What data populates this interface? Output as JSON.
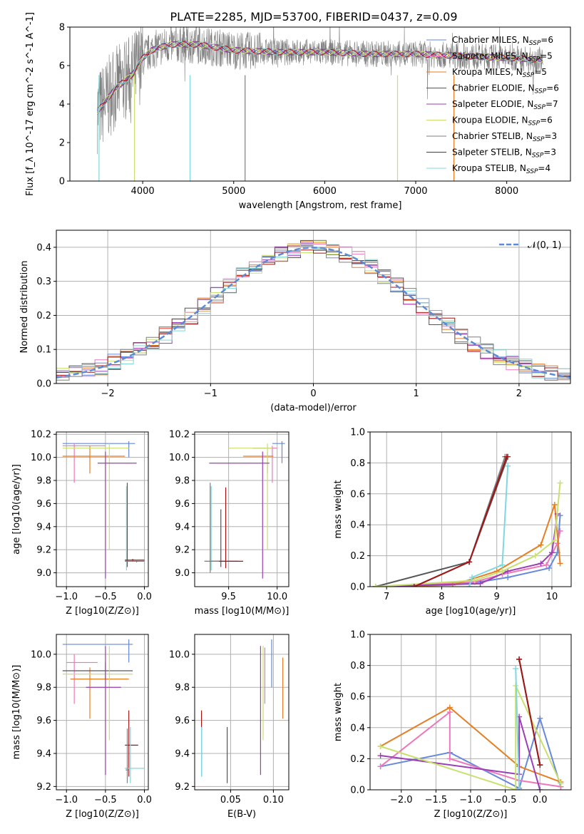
{
  "figure": {
    "title": "PLATE=2285, MJD=53700, FIBERID=0437, z=0.09"
  },
  "colors": {
    "Chabrier MILES": "#6688dd",
    "Salpeter MILES": "#ee77bb",
    "Kroupa MILES": "#e67e22",
    "Chabrier ELODIE": "#555555",
    "Salpeter ELODIE": "#9b3fb5",
    "Kroupa ELODIE": "#c8e06e",
    "Chabrier STELIB": "#7f7f7f",
    "Salpeter STELIB": "#a31515",
    "Kroupa STELIB": "#7fd8dc"
  },
  "chart_data": [
    {
      "id": "spectrum",
      "type": "line",
      "xlabel": "wavelength [Angstrom, rest frame]",
      "ylabel": "Flux [f_λ 10^-17 erg cm^-2 s^-1 A^-1]",
      "xlim": [
        3200,
        8700
      ],
      "ylim": [
        0,
        8
      ],
      "xticks": [
        "4000",
        "5000",
        "6000",
        "7000",
        "8000"
      ],
      "yticks": [
        "0",
        "2",
        "4",
        "6",
        "8"
      ],
      "grid": false,
      "legend_position": "right",
      "legend": [
        {
          "name": "Chabrier MILES",
          "nssp": "6"
        },
        {
          "name": "Salpeter MILES",
          "nssp": "5"
        },
        {
          "name": "Kroupa MILES",
          "nssp": "5"
        },
        {
          "name": "Chabrier ELODIE",
          "nssp": "6"
        },
        {
          "name": "Salpeter ELODIE",
          "nssp": "7"
        },
        {
          "name": "Kroupa ELODIE",
          "nssp": "6"
        },
        {
          "name": "Chabrier STELIB",
          "nssp": "3"
        },
        {
          "name": "Salpeter STELIB",
          "nssp": "3"
        },
        {
          "name": "Kroupa STELIB",
          "nssp": "4"
        }
      ],
      "continuum": [
        [
          3500,
          3.6
        ],
        [
          3700,
          4.8
        ],
        [
          3900,
          5.6
        ],
        [
          4000,
          6.4
        ],
        [
          4100,
          6.8
        ],
        [
          4300,
          7.1
        ],
        [
          4600,
          7.1
        ],
        [
          5000,
          6.8
        ],
        [
          5500,
          6.7
        ],
        [
          6000,
          6.7
        ],
        [
          6500,
          6.6
        ],
        [
          7000,
          6.6
        ],
        [
          7500,
          6.5
        ],
        [
          8000,
          6.4
        ],
        [
          8400,
          6.3
        ]
      ]
    },
    {
      "id": "residuals",
      "type": "line",
      "xlabel": "(data-model)/error",
      "ylabel": "Normed distribution",
      "xlim": [
        -2.5,
        2.5
      ],
      "ylim": [
        0,
        0.45
      ],
      "xticks": [
        "−2",
        "−1",
        "0",
        "1",
        "2"
      ],
      "yticks": [
        "0.0",
        "0.1",
        "0.2",
        "0.3",
        "0.4"
      ],
      "grid": true,
      "legend_position": "upper right",
      "legend_label": "𝒩(0, 1)",
      "normal": {
        "mu": 0,
        "sigma": 1
      }
    },
    {
      "id": "age-vs-Z",
      "type": "errorbar",
      "xlabel": "Z [log10(Z/Z⊙)]",
      "ylabel": "age [log10(age/yr)]",
      "xlim": [
        -1.13,
        0.05
      ],
      "ylim": [
        8.88,
        10.22
      ],
      "xticks": [
        "−1.0",
        "−0.5",
        "0.0"
      ],
      "yticks": [
        "9.0",
        "9.2",
        "9.4",
        "9.6",
        "9.8",
        "10.0",
        "10.2"
      ],
      "points": [
        {
          "model": "Chabrier MILES",
          "x": -0.2,
          "xlo": -1.05,
          "xhi": -0.12,
          "y": 10.12,
          "ylo": 10.0,
          "yhi": 10.14
        },
        {
          "model": "Salpeter MILES",
          "x": -0.9,
          "xlo": -1.05,
          "xhi": -0.5,
          "y": 10.1,
          "ylo": 9.78,
          "yhi": 10.12
        },
        {
          "model": "Kroupa MILES",
          "x": -0.7,
          "xlo": -1.05,
          "xhi": -0.25,
          "y": 10.01,
          "ylo": 9.86,
          "yhi": 10.1
        },
        {
          "model": "Kroupa ELODIE",
          "x": -0.45,
          "xlo": -1.05,
          "xhi": -0.2,
          "y": 10.08,
          "ylo": 9.2,
          "yhi": 10.12
        },
        {
          "model": "Salpeter ELODIE",
          "x": -0.5,
          "xlo": -0.6,
          "xhi": -0.1,
          "y": 9.95,
          "ylo": 8.95,
          "yhi": 10.05
        },
        {
          "model": "Chabrier ELODIE",
          "x": -0.22,
          "xlo": -0.24,
          "xhi": -0.2,
          "y": 9.1,
          "ylo": 9.05,
          "yhi": 9.78
        },
        {
          "model": "Kroupa STELIB",
          "x": -0.23,
          "xlo": -0.25,
          "xhi": -0.21,
          "y": 9.1,
          "ylo": 9.02,
          "yhi": 9.75
        },
        {
          "model": "Salpeter STELIB",
          "x": -0.15,
          "xlo": -0.25,
          "xhi": 0.0,
          "y": 9.11,
          "ylo": 9.1,
          "yhi": 9.12
        },
        {
          "model": "Chabrier STELIB",
          "x": -0.1,
          "xlo": -0.25,
          "xhi": 0.0,
          "y": 9.1,
          "ylo": 9.09,
          "yhi": 9.11
        }
      ]
    },
    {
      "id": "age-vs-mass",
      "type": "errorbar",
      "xlabel": "mass [log10(M/M⊙)]",
      "ylabel": "",
      "xlim": [
        9.15,
        10.12
      ],
      "ylim": [
        8.88,
        10.22
      ],
      "xticks": [
        "9.5",
        "10.0"
      ],
      "yticks": [
        "9.0",
        "9.2",
        "9.4",
        "9.6",
        "9.8",
        "10.0",
        "10.2"
      ],
      "points": [
        {
          "model": "Chabrier MILES",
          "x": 10.05,
          "xlo": 9.95,
          "xhi": 10.08,
          "y": 10.12,
          "ylo": 9.95,
          "yhi": 10.14
        },
        {
          "model": "Salpeter MILES",
          "x": 9.95,
          "xlo": 9.75,
          "xhi": 10.0,
          "y": 10.08,
          "ylo": 9.78,
          "yhi": 10.1
        },
        {
          "model": "Kroupa MILES",
          "x": 9.9,
          "xlo": 9.65,
          "xhi": 9.96,
          "y": 10.01,
          "ylo": 9.86,
          "yhi": 10.05
        },
        {
          "model": "Kroupa ELODIE",
          "x": 9.9,
          "xlo": 9.5,
          "xhi": 9.95,
          "y": 10.08,
          "ylo": 9.2,
          "yhi": 10.12
        },
        {
          "model": "Salpeter ELODIE",
          "x": 9.85,
          "xlo": 9.3,
          "xhi": 9.92,
          "y": 9.95,
          "ylo": 8.95,
          "yhi": 10.05
        },
        {
          "model": "Chabrier ELODIE",
          "x": 9.42,
          "xlo": 9.3,
          "xhi": 9.6,
          "y": 9.1,
          "ylo": 9.05,
          "yhi": 9.55
        },
        {
          "model": "Kroupa STELIB",
          "x": 9.32,
          "xlo": 9.25,
          "xhi": 9.4,
          "y": 9.1,
          "ylo": 9.02,
          "yhi": 9.75
        },
        {
          "model": "Salpeter STELIB",
          "x": 9.47,
          "xlo": 9.32,
          "xhi": 9.65,
          "y": 9.1,
          "ylo": 9.04,
          "yhi": 9.74
        },
        {
          "model": "Chabrier STELIB",
          "x": 9.31,
          "xlo": 9.25,
          "xhi": 9.4,
          "y": 9.1,
          "ylo": 9.0,
          "yhi": 9.78
        }
      ]
    },
    {
      "id": "weight-vs-age",
      "type": "line",
      "xlabel": "age [log10(age/yr)]",
      "ylabel": "mass weight",
      "xlim": [
        6.7,
        10.35
      ],
      "ylim": [
        0,
        1
      ],
      "xticks": [
        "7",
        "8",
        "9",
        "10"
      ],
      "yticks": [
        "0.0",
        "0.2",
        "0.4",
        "0.6",
        "0.8",
        "1.0"
      ],
      "grid": true,
      "series": [
        {
          "model": "Chabrier MILES",
          "x": [
            6.8,
            8.5,
            9.2,
            9.95,
            10.1,
            10.15
          ],
          "y": [
            0.0,
            0.02,
            0.06,
            0.12,
            0.22,
            0.46
          ]
        },
        {
          "model": "Salpeter MILES",
          "x": [
            6.8,
            8.6,
            9.1,
            9.9,
            10.1,
            10.15
          ],
          "y": [
            0.0,
            0.03,
            0.08,
            0.14,
            0.28,
            0.36
          ]
        },
        {
          "model": "Kroupa MILES",
          "x": [
            6.8,
            8.2,
            9.0,
            9.8,
            10.05,
            10.15
          ],
          "y": [
            0.0,
            0.01,
            0.1,
            0.27,
            0.53,
            0.15
          ]
        },
        {
          "model": "Chabrier ELODIE",
          "x": [
            6.8,
            8.5,
            9.2
          ],
          "y": [
            0.0,
            0.16,
            0.84
          ]
        },
        {
          "model": "Salpeter ELODIE",
          "x": [
            6.8,
            8.7,
            9.2,
            9.8,
            10.0,
            10.1
          ],
          "y": [
            0.0,
            0.02,
            0.1,
            0.15,
            0.22,
            0.47
          ]
        },
        {
          "model": "Kroupa ELODIE",
          "x": [
            6.8,
            8.6,
            9.1,
            9.7,
            10.05,
            10.15
          ],
          "y": [
            0.0,
            0.04,
            0.1,
            0.2,
            0.3,
            0.67
          ]
        },
        {
          "model": "Chabrier STELIB",
          "x": [
            7.5,
            8.5,
            9.15
          ],
          "y": [
            0.0,
            0.16,
            0.84
          ]
        },
        {
          "model": "Salpeter STELIB",
          "x": [
            7.5,
            8.5,
            9.18
          ],
          "y": [
            0.0,
            0.16,
            0.84
          ]
        },
        {
          "model": "Kroupa STELIB",
          "x": [
            8.5,
            8.55,
            9.1,
            9.2
          ],
          "y": [
            0.0,
            0.06,
            0.14,
            0.78
          ]
        }
      ]
    },
    {
      "id": "mass-vs-Z",
      "type": "errorbar",
      "xlabel": "Z [log10(Z/Z⊙)]",
      "ylabel": "mass [log10(M/M⊙)]",
      "xlim": [
        -1.13,
        0.05
      ],
      "ylim": [
        9.18,
        10.12
      ],
      "xticks": [
        "−1.0",
        "−0.5",
        "0.0"
      ],
      "yticks": [
        "9.2",
        "9.4",
        "9.6",
        "9.8",
        "10.0"
      ],
      "points": [
        {
          "model": "Chabrier MILES",
          "x": -0.2,
          "xlo": -1.05,
          "xhi": -0.15,
          "y": 10.06,
          "ylo": 9.95,
          "yhi": 10.09
        },
        {
          "model": "Salpeter MILES",
          "x": -0.9,
          "xlo": -1.0,
          "xhi": -0.6,
          "y": 9.95,
          "ylo": 9.7,
          "yhi": 10.0
        },
        {
          "model": "Kroupa MILES",
          "x": -0.7,
          "xlo": -0.95,
          "xhi": -0.2,
          "y": 9.85,
          "ylo": 9.61,
          "yhi": 9.92
        },
        {
          "model": "Chabrier ELODIE",
          "x": -0.5,
          "xlo": -1.05,
          "xhi": -0.15,
          "y": 9.9,
          "ylo": 9.85,
          "yhi": 9.95
        },
        {
          "model": "Kroupa ELODIE",
          "x": -0.45,
          "xlo": -1.05,
          "xhi": -0.15,
          "y": 9.88,
          "ylo": 9.48,
          "yhi": 10.05
        },
        {
          "model": "Salpeter ELODIE",
          "x": -0.5,
          "xlo": -0.75,
          "xhi": -0.3,
          "y": 9.8,
          "ylo": 9.27,
          "yhi": 10.05
        },
        {
          "model": "Salpeter STELIB",
          "x": -0.2,
          "xlo": -0.25,
          "xhi": -0.08,
          "y": 9.45,
          "ylo": 9.26,
          "yhi": 9.66
        },
        {
          "model": "Kroupa STELIB",
          "x": -0.18,
          "xlo": -0.25,
          "xhi": 0.0,
          "y": 9.31,
          "ylo": 9.22,
          "yhi": 9.56
        },
        {
          "model": "Chabrier STELIB",
          "x": -0.22,
          "xlo": -0.24,
          "xhi": -0.2,
          "y": 9.3,
          "ylo": 9.22,
          "yhi": 9.55
        }
      ]
    },
    {
      "id": "mass-vs-ebv",
      "type": "errorbar",
      "xlabel": "E(B-V)",
      "ylabel": "",
      "xlim": [
        0.008,
        0.118
      ],
      "ylim": [
        9.18,
        10.12
      ],
      "xticks": [
        "0.05",
        "0.10"
      ],
      "yticks": [
        "9.2",
        "9.4",
        "9.6",
        "9.8",
        "10.0"
      ],
      "points": [
        {
          "model": "Salpeter STELIB",
          "x": 0.016,
          "y": 9.45,
          "ylo": 9.26,
          "yhi": 9.66
        },
        {
          "model": "Kroupa STELIB",
          "x": 0.016,
          "y": 9.4,
          "ylo": 9.26,
          "yhi": 9.56
        },
        {
          "model": "Chabrier ELODIE",
          "x": 0.046,
          "y": 9.4,
          "ylo": 9.22,
          "yhi": 9.56
        },
        {
          "model": "Salpeter ELODIE",
          "x": 0.085,
          "y": 9.7,
          "ylo": 9.27,
          "yhi": 10.05
        },
        {
          "model": "Kroupa ELODIE",
          "x": 0.088,
          "y": 9.75,
          "ylo": 9.48,
          "yhi": 10.05
        },
        {
          "model": "Salpeter MILES",
          "x": 0.09,
          "y": 9.8,
          "ylo": 9.7,
          "yhi": 10.04
        },
        {
          "model": "Chabrier MILES",
          "x": 0.098,
          "y": 10.0,
          "ylo": 9.8,
          "yhi": 10.09
        },
        {
          "model": "Kroupa MILES",
          "x": 0.111,
          "y": 9.85,
          "ylo": 9.61,
          "yhi": 9.98
        }
      ]
    },
    {
      "id": "weight-vs-Z",
      "type": "line",
      "xlabel": "Z [log10(Z/Z⊙)]",
      "ylabel": "mass weight",
      "xlim": [
        -2.45,
        0.45
      ],
      "ylim": [
        0,
        1
      ],
      "xticks": [
        "−2.0",
        "−1.5",
        "−1.0",
        "−0.5",
        "0.0"
      ],
      "yticks": [
        "0.0",
        "0.2",
        "0.4",
        "0.6",
        "0.8",
        "1.0"
      ],
      "grid": true,
      "series": [
        {
          "model": "Chabrier MILES",
          "x": [
            -2.3,
            -1.3,
            -0.3,
            0.0,
            0.3
          ],
          "y": [
            0.15,
            0.24,
            0.01,
            0.46,
            0.02
          ]
        },
        {
          "model": "Salpeter MILES",
          "x": [
            -2.3,
            -1.3,
            -1.3,
            -0.3,
            0.3
          ],
          "y": [
            0.15,
            0.5,
            0.2,
            0.06,
            0.02
          ]
        },
        {
          "model": "Kroupa MILES",
          "x": [
            -2.3,
            -1.3,
            -0.3,
            0.3
          ],
          "y": [
            0.28,
            0.53,
            0.15,
            0.05
          ]
        },
        {
          "model": "Chabrier ELODIE",
          "x": [
            -0.3,
            0.0
          ],
          "y": [
            0.84,
            0.16
          ]
        },
        {
          "model": "Salpeter ELODIE",
          "x": [
            -2.3,
            -0.3,
            -0.3,
            0.0
          ],
          "y": [
            0.22,
            0.1,
            0.47,
            0.0
          ]
        },
        {
          "model": "Kroupa ELODIE",
          "x": [
            -2.3,
            -0.35,
            -0.35,
            0.3
          ],
          "y": [
            0.28,
            0.0,
            0.67,
            0.04
          ]
        },
        {
          "model": "Salpeter STELIB",
          "x": [
            -0.3,
            0.0
          ],
          "y": [
            0.84,
            0.16
          ]
        },
        {
          "model": "Kroupa STELIB",
          "x": [
            -0.35,
            -0.3
          ],
          "y": [
            0.78,
            0.0
          ]
        }
      ]
    }
  ]
}
